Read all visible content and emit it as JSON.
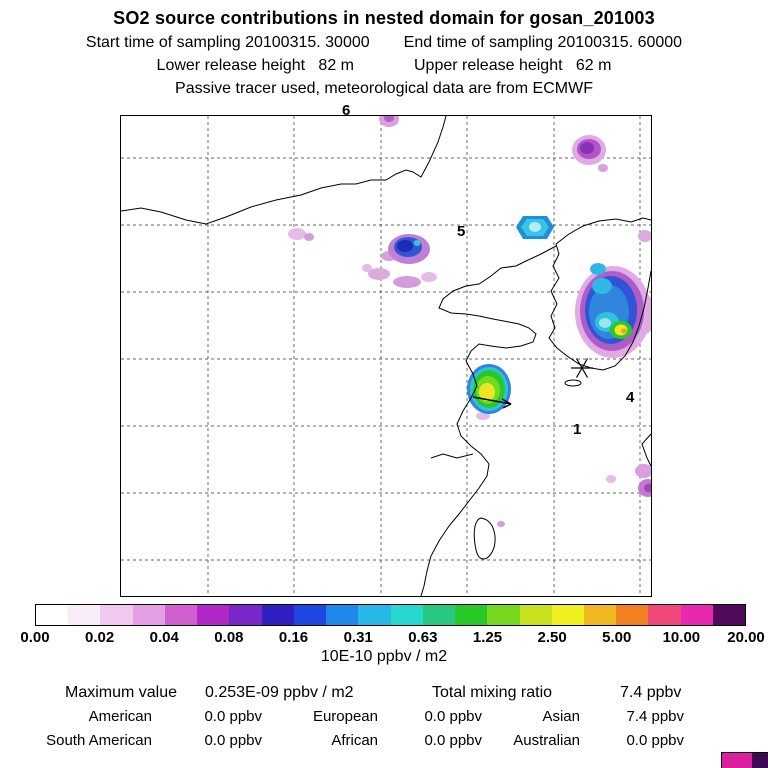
{
  "title": "SO2 source contributions in nested domain for gosan_201003",
  "header": {
    "line1_left": "Start time of sampling 20100315. 30000",
    "line1_right": "End time of sampling 20100315. 60000",
    "line2_left": "Lower release height   82 m",
    "line2_right": "Upper release height   62 m",
    "line3": "Passive tracer used, meteorological data are from ECMWF"
  },
  "map": {
    "labels": [
      {
        "text": "6"
      },
      {
        "text": "5"
      },
      {
        "text": "4"
      },
      {
        "text": "1"
      }
    ],
    "marker": "asterisk-receptor-gosan"
  },
  "colorbar": {
    "ticks": [
      "0.00",
      "0.02",
      "0.04",
      "0.08",
      "0.16",
      "0.31",
      "0.63",
      "1.25",
      "2.50",
      "5.00",
      "10.00",
      "20.00"
    ],
    "unit": "10E-10 ppbv / m2",
    "colors": [
      "#ffffff",
      "#f8ecf8",
      "#f0c8f0",
      "#e4a0e4",
      "#d060d0",
      "#b028c8",
      "#7828c8",
      "#3020c0",
      "#2048e0",
      "#2088e8",
      "#28b8e8",
      "#28d8d0",
      "#28c880",
      "#28c828",
      "#78d820",
      "#c8e020",
      "#f0f020",
      "#f0b820",
      "#f08020",
      "#f04878",
      "#e828b0",
      "#500a5a"
    ]
  },
  "stats": {
    "maximum_label": "Maximum value",
    "maximum_value": "0.253E-09 ppbv / m2",
    "total_label": "Total mixing ratio",
    "total_value": "7.4 ppbv",
    "regions": [
      {
        "name": "American",
        "value": "0.0 ppbv"
      },
      {
        "name": "European",
        "value": "0.0 ppbv"
      },
      {
        "name": "Asian",
        "value": "7.4 ppbv"
      },
      {
        "name": "South American",
        "value": "0.0 ppbv"
      },
      {
        "name": "African",
        "value": "0.0 ppbv"
      },
      {
        "name": "Australian",
        "value": "0.0 ppbv"
      }
    ]
  }
}
